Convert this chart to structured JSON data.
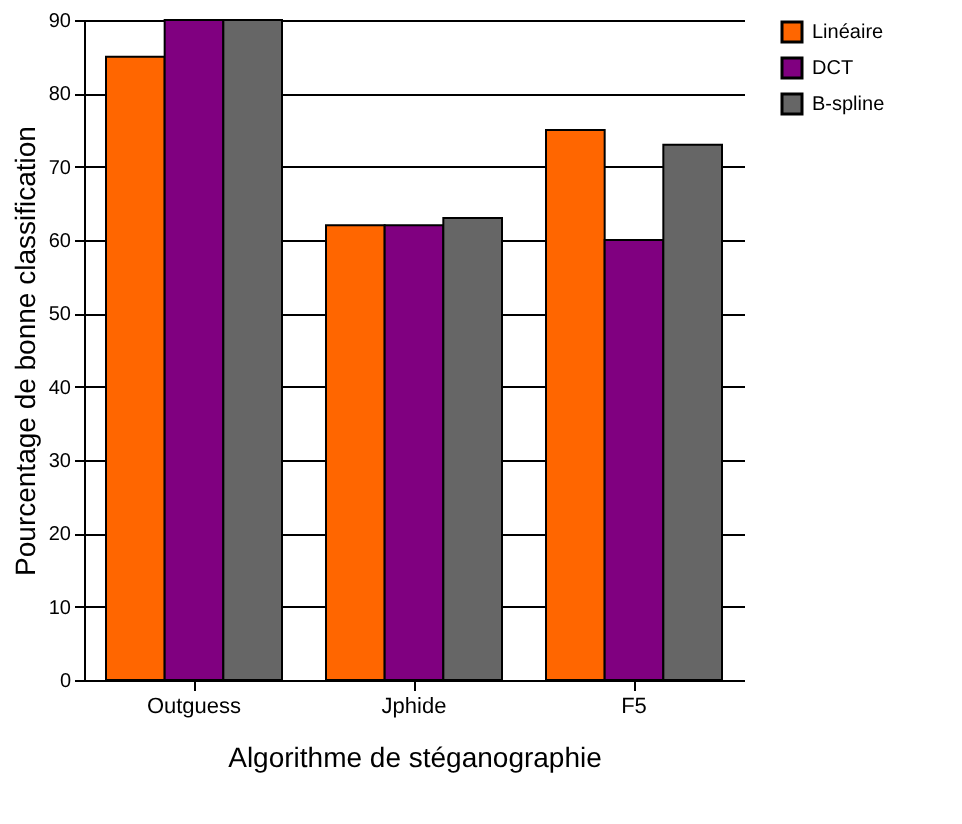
{
  "chart_data": {
    "type": "bar",
    "xlabel": "Algorithme de stéganographie",
    "ylabel": "Pourcentage de bonne classification",
    "categories": [
      "Outguess",
      "Jphide",
      "F5"
    ],
    "series": [
      {
        "name": "Linéaire",
        "color": "#ff6600",
        "values": [
          85,
          62,
          75
        ]
      },
      {
        "name": "DCT",
        "color": "#800080",
        "values": [
          90,
          62,
          60
        ]
      },
      {
        "name": "B-spline",
        "color": "#666666",
        "values": [
          90,
          63,
          73
        ]
      }
    ],
    "ylim": [
      0,
      90
    ],
    "yticks": [
      0,
      10,
      20,
      30,
      40,
      50,
      60,
      70,
      80,
      90
    ],
    "grid": "y",
    "legend": "right"
  }
}
